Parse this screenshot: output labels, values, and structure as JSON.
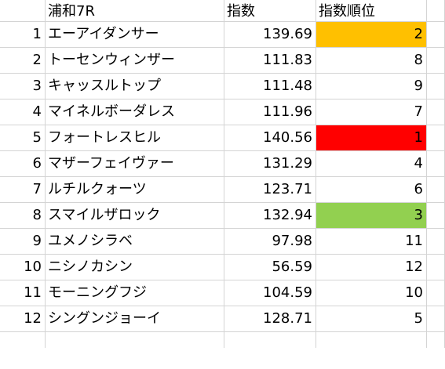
{
  "header": {
    "name": "浦和7R",
    "score": "指数",
    "rank": "指数順位"
  },
  "colors": {
    "rank1": "#ff0000",
    "rank2": "#ffc000",
    "rank3": "#92d050"
  },
  "rows": [
    {
      "no": "1",
      "name": "エーアイダンサー",
      "score": "139.69",
      "rank": "2",
      "hl": "rank2"
    },
    {
      "no": "2",
      "name": "トーセンウィンザー",
      "score": "111.83",
      "rank": "8",
      "hl": ""
    },
    {
      "no": "3",
      "name": "キャッスルトップ",
      "score": "111.48",
      "rank": "9",
      "hl": ""
    },
    {
      "no": "4",
      "name": "マイネルボーダレス",
      "score": "111.96",
      "rank": "7",
      "hl": ""
    },
    {
      "no": "5",
      "name": "フォートレスヒル",
      "score": "140.56",
      "rank": "1",
      "hl": "rank1"
    },
    {
      "no": "6",
      "name": "マザーフェイヴァー",
      "score": "131.29",
      "rank": "4",
      "hl": ""
    },
    {
      "no": "7",
      "name": "ルチルクォーツ",
      "score": "123.71",
      "rank": "6",
      "hl": ""
    },
    {
      "no": "8",
      "name": "スマイルザロック",
      "score": "132.94",
      "rank": "3",
      "hl": "rank3"
    },
    {
      "no": "9",
      "name": "ユメノシラベ",
      "score": "97.98",
      "rank": "11",
      "hl": ""
    },
    {
      "no": "10",
      "name": "ニシノカシン",
      "score": "56.59",
      "rank": "12",
      "hl": ""
    },
    {
      "no": "11",
      "name": "モーニングフジ",
      "score": "104.59",
      "rank": "10",
      "hl": ""
    },
    {
      "no": "12",
      "name": "シングンジョーイ",
      "score": "128.71",
      "rank": "5",
      "hl": ""
    }
  ]
}
